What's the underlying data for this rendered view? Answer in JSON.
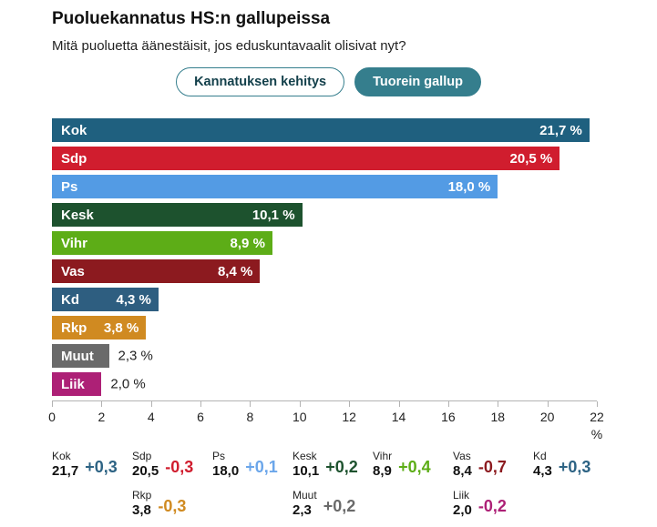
{
  "header": {
    "title": "Puoluekannatus HS:n gallupeissa",
    "subtitle": "Mitä puoluetta äänestäisit, jos eduskuntavaalit olisivat nyt?"
  },
  "toolbar": {
    "accent_color": "#357e8d",
    "tabs": [
      {
        "label": "Kannatuksen kehitys",
        "active": false
      },
      {
        "label": "Tuorein gallup",
        "active": true
      }
    ]
  },
  "chart_data": {
    "type": "bar",
    "orientation": "horizontal",
    "title": "Puoluekannatus HS:n gallupeissa",
    "xlabel": "%",
    "xlim": [
      0,
      22
    ],
    "x_ticks": [
      0,
      2,
      4,
      6,
      8,
      10,
      12,
      14,
      16,
      18,
      20,
      22
    ],
    "grid": false,
    "bars": [
      {
        "party": "Kok",
        "value": 21.7,
        "display": "21,7 %",
        "color": "#1f607f",
        "value_inside": true
      },
      {
        "party": "Sdp",
        "value": 20.5,
        "display": "20,5 %",
        "color": "#d01d2e",
        "value_inside": true
      },
      {
        "party": "Ps",
        "value": 18.0,
        "display": "18,0 %",
        "color": "#539be4",
        "value_inside": true
      },
      {
        "party": "Kesk",
        "value": 10.1,
        "display": "10,1 %",
        "color": "#1d522e",
        "value_inside": true
      },
      {
        "party": "Vihr",
        "value": 8.9,
        "display": "8,9 %",
        "color": "#5dad17",
        "value_inside": true
      },
      {
        "party": "Vas",
        "value": 8.4,
        "display": "8,4 %",
        "color": "#8c1a1f",
        "value_inside": true
      },
      {
        "party": "Kd",
        "value": 4.3,
        "display": "4,3 %",
        "color": "#2e5e80",
        "value_inside": true
      },
      {
        "party": "Rkp",
        "value": 3.8,
        "display": "3,8 %",
        "color": "#d08a21",
        "value_inside": true
      },
      {
        "party": "Muut",
        "value": 2.3,
        "display": "2,3 %",
        "color": "#6a6a6a",
        "value_inside": false
      },
      {
        "party": "Liik",
        "value": 2.0,
        "display": "2,0 %",
        "color": "#ad2076",
        "value_inside": false
      }
    ]
  },
  "summary": {
    "rows": [
      {
        "items": [
          {
            "party": "Kok",
            "value": "21,7",
            "change": "+0,3",
            "color": "#2d6384",
            "col": 0
          },
          {
            "party": "Sdp",
            "value": "20,5",
            "change": "-0,3",
            "color": "#d01d2e",
            "col": 1
          },
          {
            "party": "Ps",
            "value": "18,0",
            "change": "+0,1",
            "color": "#6ba6ea",
            "col": 2
          },
          {
            "party": "Kesk",
            "value": "10,1",
            "change": "+0,2",
            "color": "#1d522e",
            "col": 3
          },
          {
            "party": "Vihr",
            "value": "8,9",
            "change": "+0,4",
            "color": "#5dad17",
            "col": 4
          },
          {
            "party": "Vas",
            "value": "8,4",
            "change": "-0,7",
            "color": "#8c1a1f",
            "col": 5
          },
          {
            "party": "Kd",
            "value": "4,3",
            "change": "+0,3",
            "color": "#2d6384",
            "col": 6
          }
        ]
      },
      {
        "items": [
          {
            "party": "Rkp",
            "value": "3,8",
            "change": "-0,3",
            "color": "#d08a21",
            "col": 1
          },
          {
            "party": "Muut",
            "value": "2,3",
            "change": "+0,2",
            "color": "#6a6a6a",
            "col": 3
          },
          {
            "party": "Liik",
            "value": "2,0",
            "change": "-0,2",
            "color": "#ad2076",
            "col": 5
          }
        ]
      }
    ]
  }
}
